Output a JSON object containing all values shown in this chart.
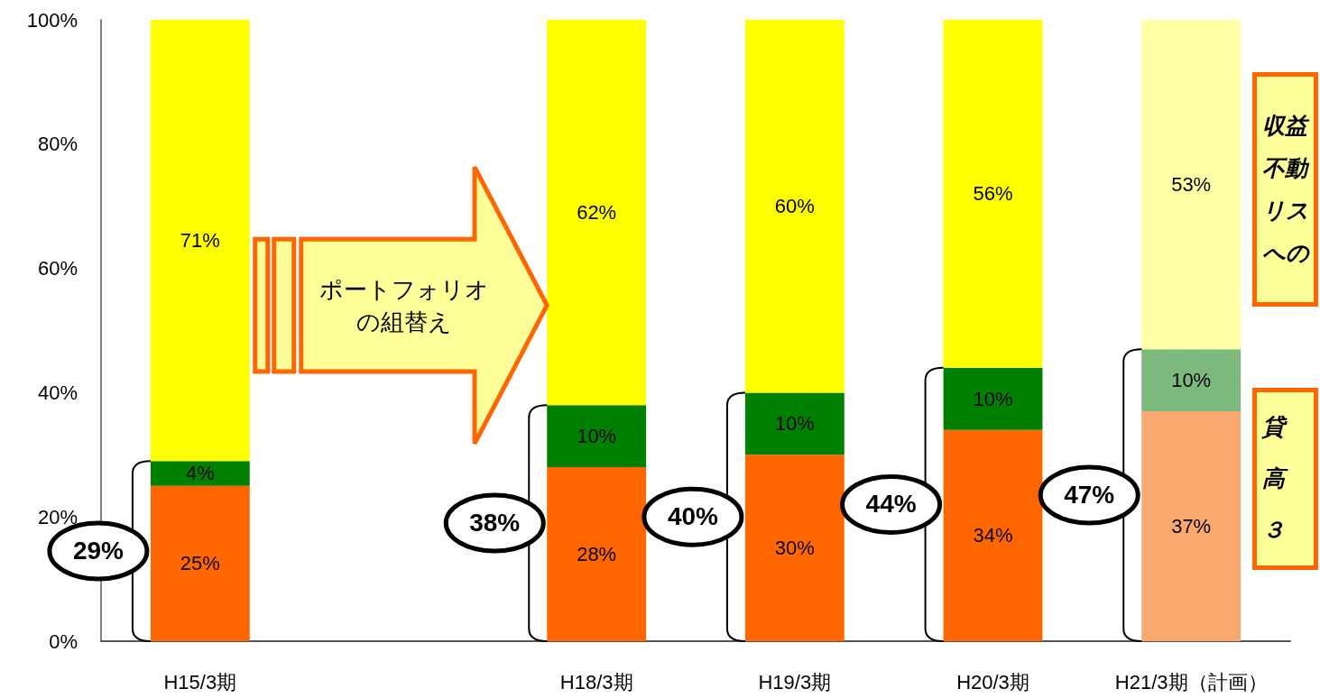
{
  "chart_data": {
    "type": "bar",
    "stacked": true,
    "categories": [
      "H15/3期",
      null,
      "H18/3期",
      "H19/3期",
      "H20/3期",
      "H21/3期（計画）"
    ],
    "series": [
      {
        "colors": [
          "#ff6600",
          "#ff6600",
          "#ff6600",
          "#ff6600",
          "#ff6600",
          "#f9a870"
        ],
        "values": [
          25,
          null,
          28,
          30,
          34,
          37
        ],
        "value_labels": [
          "25%",
          null,
          "28%",
          "30%",
          "34%",
          "37%"
        ]
      },
      {
        "colors": [
          "#008000",
          "#008000",
          "#008000",
          "#008000",
          "#008000",
          "#7db87d"
        ],
        "values": [
          4,
          null,
          10,
          10,
          10,
          10
        ],
        "value_labels": [
          "4%",
          null,
          "10%",
          "10%",
          "10%",
          "10%"
        ]
      },
      {
        "colors": [
          "#ffff00",
          "#ffff00",
          "#ffff00",
          "#ffff00",
          "#ffff00",
          "#ffffa6"
        ],
        "values": [
          71,
          null,
          62,
          60,
          56,
          53
        ],
        "value_labels": [
          "71%",
          null,
          "62%",
          "60%",
          "56%",
          "53%"
        ]
      }
    ],
    "ylim": [
      0,
      100
    ],
    "yticks": [
      {
        "value": 0,
        "label": "0%"
      },
      {
        "value": 20,
        "label": "20%"
      },
      {
        "value": 40,
        "label": "40%"
      },
      {
        "value": 60,
        "label": "60%"
      },
      {
        "value": 80,
        "label": "80%"
      },
      {
        "value": 100,
        "label": "100%"
      }
    ],
    "grid": false,
    "annotations": [
      "29%",
      "38%",
      "40%",
      "44%",
      "47%",
      "ポートフォリオの組替え",
      "収益不動リスへの",
      "貸高３"
    ]
  }
}
